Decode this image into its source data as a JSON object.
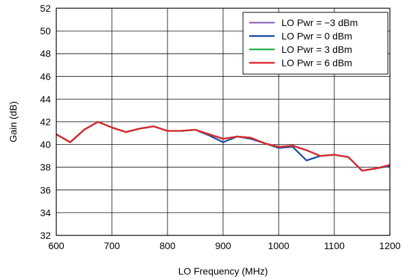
{
  "chart_data": {
    "type": "line",
    "xlabel": "LO Frequency (MHz)",
    "ylabel": "Gain (dB)",
    "xlim": [
      600,
      1200
    ],
    "ylim": [
      32,
      52
    ],
    "xticks": [
      600,
      700,
      800,
      900,
      1000,
      1100,
      1200
    ],
    "yticks": [
      32,
      34,
      36,
      38,
      40,
      42,
      44,
      46,
      48,
      50,
      52
    ],
    "grid": true,
    "legend_position": "top-right",
    "x": [
      600,
      625,
      650,
      675,
      700,
      725,
      750,
      775,
      800,
      825,
      850,
      875,
      900,
      925,
      950,
      975,
      1000,
      1025,
      1050,
      1075,
      1100,
      1125,
      1150,
      1175,
      1200
    ],
    "series": [
      {
        "name": "LO Pwr = −3 dBm",
        "color": "#9370c0",
        "values": [
          40.9,
          40.2,
          41.3,
          42.0,
          41.5,
          41.1,
          41.4,
          41.6,
          41.2,
          41.2,
          41.3,
          40.9,
          40.5,
          40.7,
          40.6,
          40.1,
          39.8,
          39.9,
          39.5,
          39.0,
          39.1,
          38.9,
          37.7,
          37.9,
          38.2
        ]
      },
      {
        "name": "LO Pwr = 0 dBm",
        "color": "#1f4e9e",
        "values": [
          40.9,
          40.2,
          41.3,
          42.0,
          41.5,
          41.1,
          41.4,
          41.6,
          41.2,
          41.2,
          41.3,
          40.8,
          40.2,
          40.7,
          40.5,
          40.1,
          39.7,
          39.8,
          38.6,
          39.0,
          39.1,
          38.9,
          37.7,
          37.9,
          38.1
        ]
      },
      {
        "name": "LO Pwr = 3 dBm",
        "color": "#2db34a",
        "values": [
          40.9,
          40.2,
          41.3,
          42.0,
          41.5,
          41.1,
          41.4,
          41.6,
          41.2,
          41.2,
          41.3,
          40.9,
          40.5,
          40.7,
          40.6,
          40.1,
          39.8,
          39.9,
          39.5,
          39.0,
          39.1,
          38.9,
          37.7,
          37.9,
          38.2
        ]
      },
      {
        "name": "LO Pwr = 6 dBm",
        "color": "#e0282e",
        "values": [
          40.9,
          40.2,
          41.3,
          42.0,
          41.5,
          41.1,
          41.4,
          41.6,
          41.2,
          41.2,
          41.3,
          40.9,
          40.5,
          40.7,
          40.6,
          40.1,
          39.8,
          39.9,
          39.5,
          39.0,
          39.1,
          38.9,
          37.7,
          37.9,
          38.2
        ]
      }
    ]
  }
}
